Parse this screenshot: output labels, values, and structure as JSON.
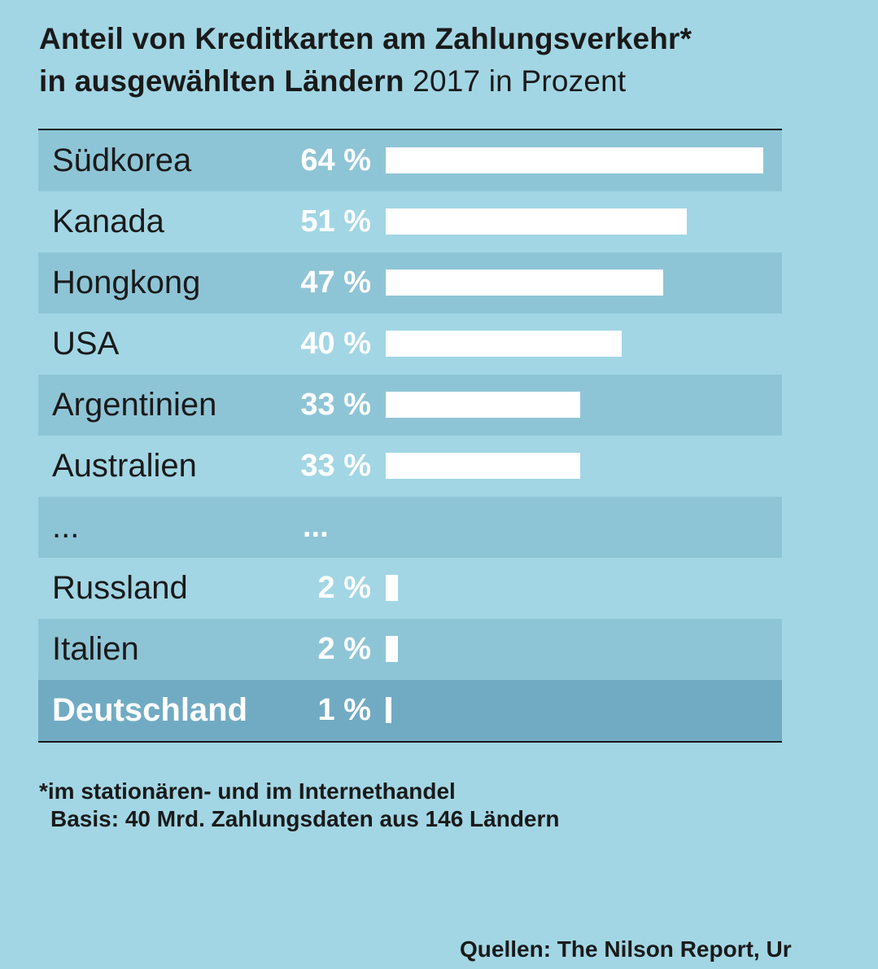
{
  "header": {
    "title_bold_line1": "Anteil von Kreditkarten am Zahlungsverkehr*",
    "title_bold_line2": "in ausgewählten Ländern",
    "title_light": " 2017 in Prozent"
  },
  "chart_data": {
    "type": "bar",
    "orientation": "horizontal",
    "title": "Anteil von Kreditkarten am Zahlungsverkehr* in ausgewählten Ländern 2017 in Prozent",
    "unit": "%",
    "xlim": [
      0,
      64
    ],
    "rows": [
      {
        "category": "Südkorea",
        "value": 64,
        "label": "64 %",
        "style": "shaded"
      },
      {
        "category": "Kanada",
        "value": 51,
        "label": "51 %",
        "style": "plain"
      },
      {
        "category": "Hongkong",
        "value": 47,
        "label": "47 %",
        "style": "shaded"
      },
      {
        "category": "USA",
        "value": 40,
        "label": "40 %",
        "style": "plain"
      },
      {
        "category": "Argentinien",
        "value": 33,
        "label": "33 %",
        "style": "shaded"
      },
      {
        "category": "Australien",
        "value": 33,
        "label": "33 %",
        "style": "plain"
      },
      {
        "category": "...",
        "value": null,
        "label": "...",
        "style": "shaded"
      },
      {
        "category": "Russland",
        "value": 2,
        "label": "2 %",
        "style": "plain"
      },
      {
        "category": "Italien",
        "value": 2,
        "label": "2 %",
        "style": "shaded"
      },
      {
        "category": "Deutschland",
        "value": 1,
        "label": "1 %",
        "style": "highlight"
      }
    ]
  },
  "footnote": {
    "line1": "*im stationären- und im Internethandel",
    "line2": "Basis: 40 Mrd. Zahlungsdaten aus 146 Ländern"
  },
  "source": "Quellen: The Nilson Report, Ur",
  "colors": {
    "background": "#a2d6e4",
    "row_shaded": "#8ec5d6",
    "row_highlight": "#71abc3",
    "bar": "#ffffff",
    "text": "#1a1a1a"
  }
}
